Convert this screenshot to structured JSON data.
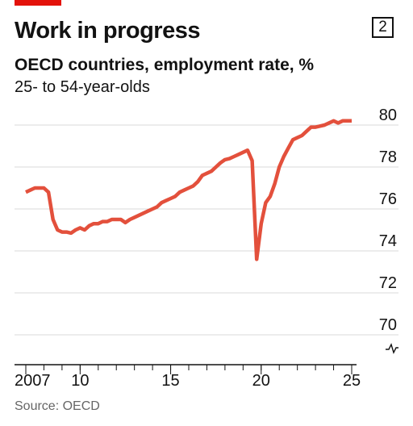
{
  "header": {
    "title": "Work in progress",
    "badge": "2",
    "subtitle": "OECD countries, employment rate, %",
    "subtitle2": "25- to 54-year-olds"
  },
  "source": "Source: OECD",
  "colors": {
    "accent": "#e3120b",
    "line": "#e3503c",
    "grid": "#d9d9d9"
  },
  "chart_data": {
    "type": "line",
    "title": "OECD countries, employment rate, %",
    "subtitle": "25- to 54-year-olds",
    "xlabel": "",
    "ylabel": "",
    "xlim": [
      2007,
      2025.5
    ],
    "ylim": [
      70,
      80
    ],
    "y_axis_break": true,
    "y_ticks": [
      80,
      78,
      76,
      74,
      72,
      70
    ],
    "x_ticks": [
      {
        "value": 2007,
        "label": "2007"
      },
      {
        "value": 2010,
        "label": "10"
      },
      {
        "value": 2015,
        "label": "15"
      },
      {
        "value": 2020,
        "label": "20"
      },
      {
        "value": 2025,
        "label": "25"
      }
    ],
    "grid": true,
    "series": [
      {
        "x": [
          2007.0,
          2007.25,
          2007.5,
          2007.75,
          2008.0,
          2008.25,
          2008.5,
          2008.75,
          2009.0,
          2009.25,
          2009.5,
          2009.75,
          2010.0,
          2010.25,
          2010.5,
          2010.75,
          2011.0,
          2011.25,
          2011.5,
          2011.75,
          2012.0,
          2012.25,
          2012.5,
          2012.75,
          2013.0,
          2013.25,
          2013.5,
          2013.75,
          2014.0,
          2014.25,
          2014.5,
          2014.75,
          2015.0,
          2015.25,
          2015.5,
          2015.75,
          2016.0,
          2016.25,
          2016.5,
          2016.75,
          2017.0,
          2017.25,
          2017.5,
          2017.75,
          2018.0,
          2018.25,
          2018.5,
          2018.75,
          2019.0,
          2019.25,
          2019.5,
          2019.75,
          2020.0,
          2020.25,
          2020.5,
          2020.75,
          2021.0,
          2021.25,
          2021.5,
          2021.75,
          2022.0,
          2022.25,
          2022.5,
          2022.75,
          2023.0,
          2023.25,
          2023.5,
          2023.75,
          2024.0,
          2024.25,
          2024.5,
          2024.75,
          2025.0
        ],
        "values": [
          76.8,
          76.9,
          77.0,
          77.0,
          77.0,
          76.8,
          75.5,
          75.0,
          74.9,
          74.9,
          74.85,
          75.0,
          75.1,
          75.0,
          75.2,
          75.3,
          75.3,
          75.4,
          75.4,
          75.5,
          75.5,
          75.5,
          75.35,
          75.5,
          75.6,
          75.7,
          75.8,
          75.9,
          76.0,
          76.1,
          76.3,
          76.4,
          76.5,
          76.6,
          76.8,
          76.9,
          77.0,
          77.1,
          77.3,
          77.6,
          77.7,
          77.8,
          78.0,
          78.2,
          78.35,
          78.4,
          78.5,
          78.6,
          78.7,
          78.8,
          78.3,
          73.6,
          75.3,
          76.3,
          76.6,
          77.2,
          78.0,
          78.5,
          78.9,
          79.3,
          79.4,
          79.5,
          79.7,
          79.9,
          79.9,
          79.95,
          80.0,
          80.1,
          80.2,
          80.1,
          80.2,
          80.2,
          80.2
        ]
      }
    ]
  }
}
